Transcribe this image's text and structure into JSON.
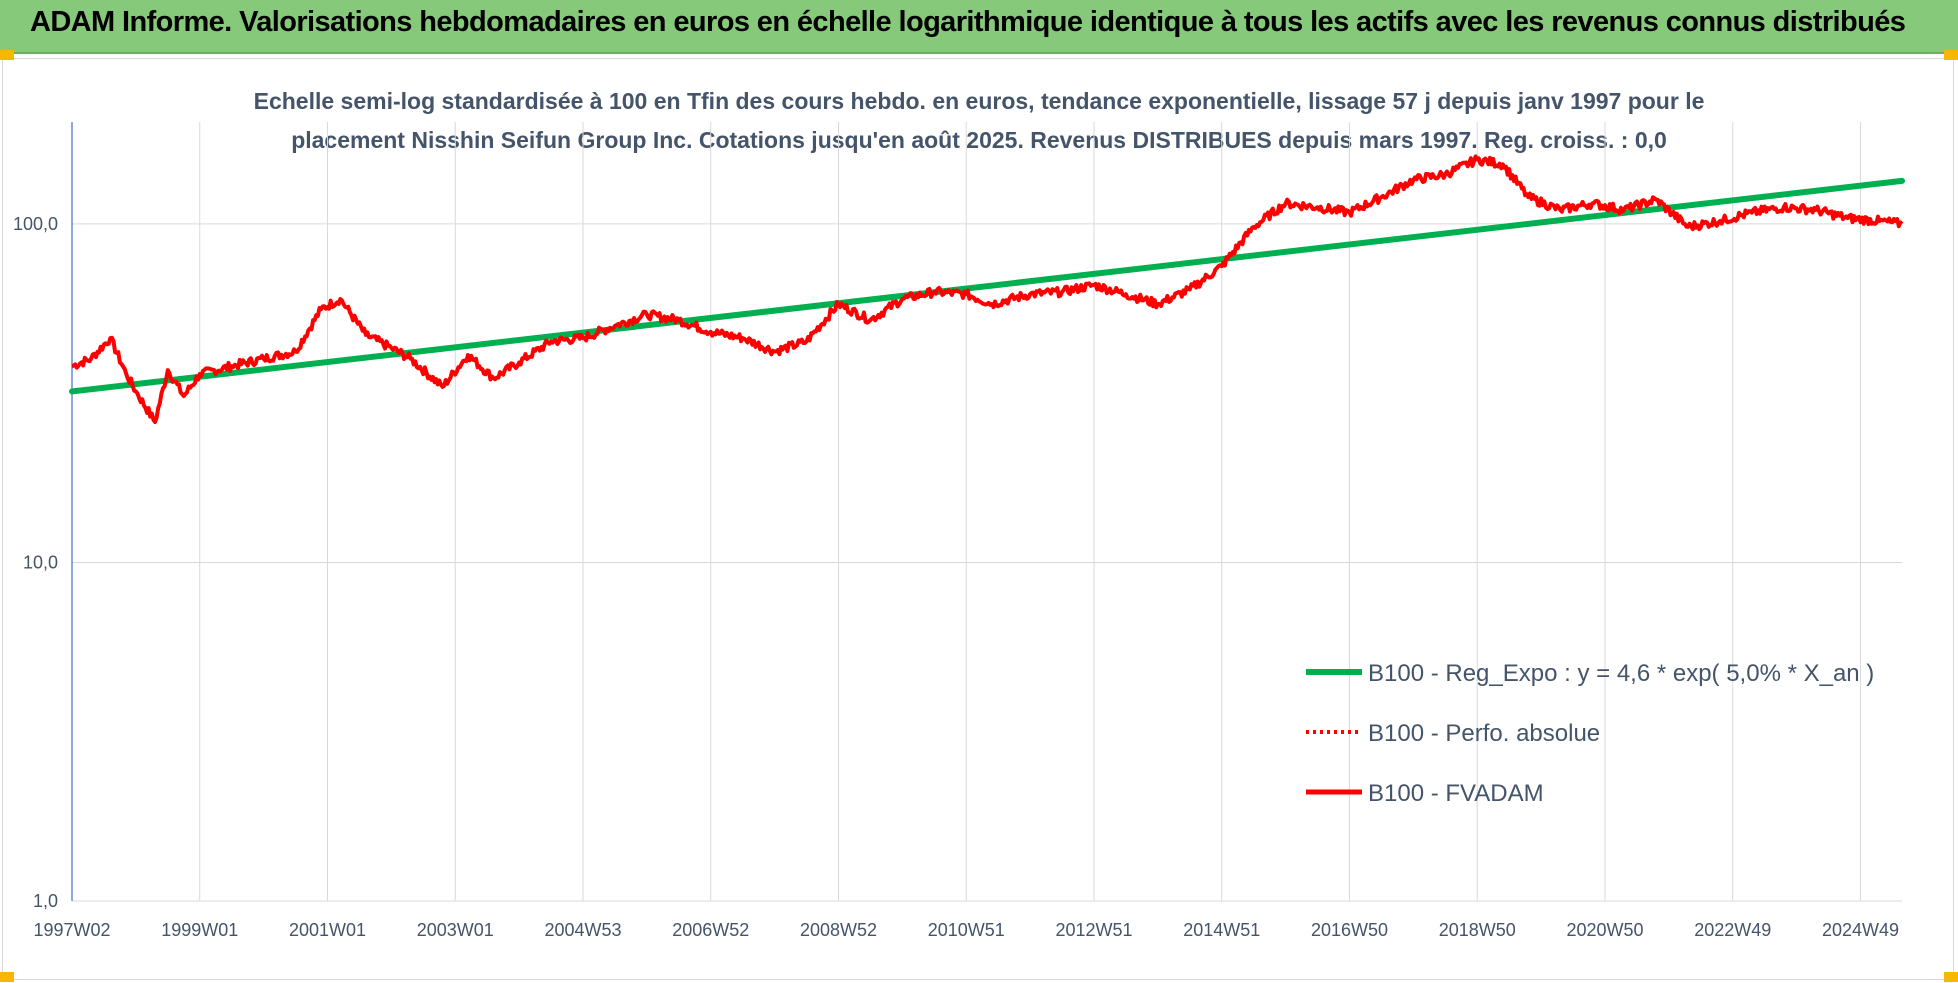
{
  "header": {
    "title": "ADAM Informe. Valorisations hebdomadaires en euros en échelle logarithmique identique à tous les actifs avec les revenus connus distribués"
  },
  "colors": {
    "banner": "#86c97a",
    "trend": "#00b050",
    "fvadam": "#ff0000",
    "text": "#44546a",
    "corner_accent": "#f5b800"
  },
  "chart_data": {
    "type": "line",
    "title_lines": [
      "Echelle semi-log standardisée à 100 en Tfin des cours hebdo. en euros, tendance exponentielle, lissage 57 j depuis janv 1997 pour le",
      "placement Nisshin Seifun Group Inc.  Cotations jusqu'en août 2025. Revenus DISTRIBUES depuis mars 1997. Reg. croiss. : 0,0"
    ],
    "y_scale": "log",
    "ylim": [
      1,
      200
    ],
    "xlim": [
      1997.0,
      2025.65
    ],
    "y_ticks": [
      {
        "value": 1,
        "label": "1,0"
      },
      {
        "value": 10,
        "label": "10,0"
      },
      {
        "value": 100,
        "label": "100,0"
      }
    ],
    "x_ticks": [
      {
        "value": 1997.0,
        "label": "1997W02"
      },
      {
        "value": 1999.0,
        "label": "1999W01"
      },
      {
        "value": 2001.0,
        "label": "2001W01"
      },
      {
        "value": 2003.0,
        "label": "2003W01"
      },
      {
        "value": 2005.0,
        "label": "2004W53"
      },
      {
        "value": 2007.0,
        "label": "2006W52"
      },
      {
        "value": 2009.0,
        "label": "2008W52"
      },
      {
        "value": 2011.0,
        "label": "2010W51"
      },
      {
        "value": 2013.0,
        "label": "2012W51"
      },
      {
        "value": 2015.0,
        "label": "2014W51"
      },
      {
        "value": 2017.0,
        "label": "2016W50"
      },
      {
        "value": 2019.0,
        "label": "2018W50"
      },
      {
        "value": 2021.0,
        "label": "2020W50"
      },
      {
        "value": 2023.0,
        "label": "2022W49"
      },
      {
        "value": 2025.0,
        "label": "2024W49"
      }
    ],
    "grid": "vertical",
    "legend_position": "bottom-right",
    "series": [
      {
        "name": "B100 - Reg_Expo : y = 4,6 * exp( 5,0% *  X_an )",
        "style": "solid-thick",
        "color": "#00b050",
        "x": [
          1997.0,
          2025.65
        ],
        "y": [
          32.0,
          134.0
        ]
      },
      {
        "name": "B100 - Perfo. absolue",
        "style": "dotted",
        "color": "#ff0000",
        "x": [],
        "y": []
      },
      {
        "name": "B100 - FVADAM",
        "style": "solid",
        "color": "#ff0000",
        "x": [
          1997.0,
          1997.3,
          1997.6,
          1997.85,
          1998.0,
          1998.3,
          1998.5,
          1998.75,
          1999.0,
          1999.5,
          2000.0,
          2000.5,
          2000.9,
          2001.2,
          2001.6,
          2002.0,
          2002.3,
          2002.8,
          2003.2,
          2003.6,
          2004.0,
          2004.5,
          2005.0,
          2005.5,
          2006.0,
          2006.5,
          2007.0,
          2007.5,
          2008.0,
          2008.5,
          2009.0,
          2009.5,
          2010.0,
          2010.5,
          2011.0,
          2011.4,
          2012.0,
          2012.5,
          2013.0,
          2013.5,
          2014.0,
          2014.5,
          2015.0,
          2015.5,
          2016.0,
          2016.5,
          2017.0,
          2017.5,
          2018.0,
          2018.5,
          2019.0,
          2019.4,
          2019.8,
          2020.3,
          2020.8,
          2021.3,
          2021.8,
          2022.3,
          2022.8,
          2023.3,
          2023.8,
          2024.3,
          2024.8,
          2025.3,
          2025.65
        ],
        "y": [
          38,
          40,
          46,
          36,
          32,
          26,
          37,
          31,
          36,
          38,
          40,
          42,
          56,
          60,
          47,
          43,
          40,
          33,
          41,
          35,
          39,
          45,
          46,
          50,
          54,
          52,
          48,
          46,
          42,
          45,
          58,
          52,
          60,
          63,
          62,
          58,
          62,
          63,
          66,
          62,
          58,
          64,
          75,
          98,
          115,
          112,
          108,
          120,
          135,
          140,
          155,
          150,
          120,
          110,
          115,
          110,
          118,
          98,
          102,
          108,
          112,
          110,
          104,
          102,
          100
        ]
      }
    ]
  }
}
